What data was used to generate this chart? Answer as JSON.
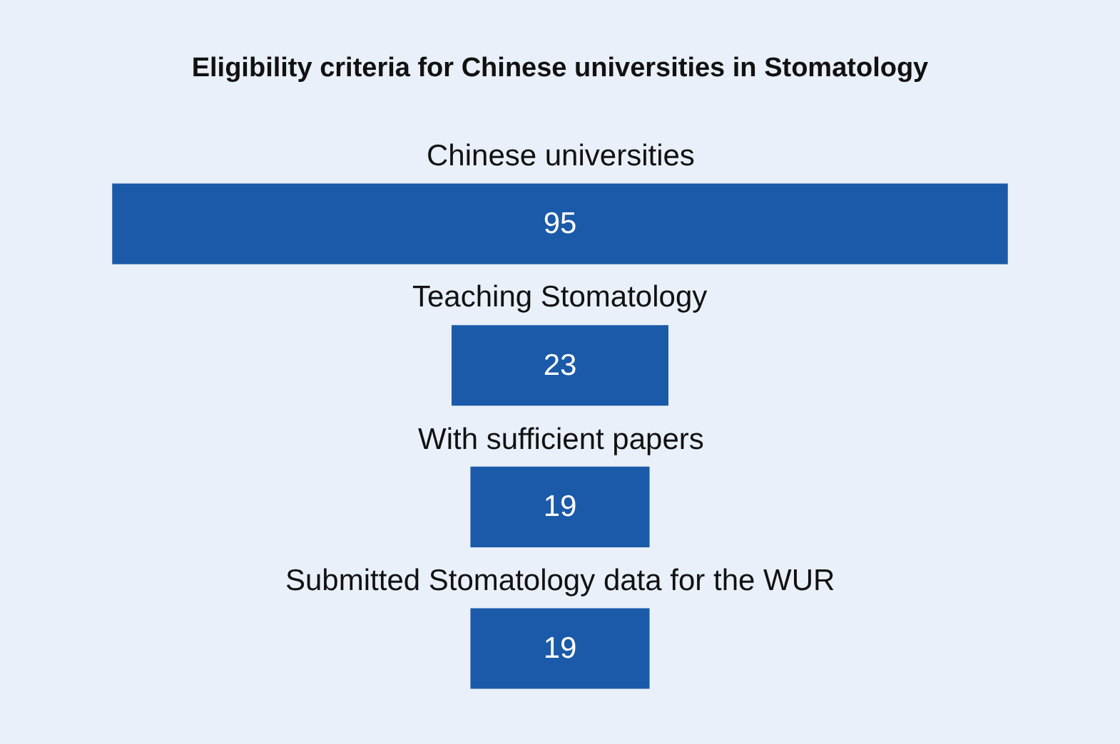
{
  "chart_data": {
    "type": "other",
    "title": "Eligibility criteria for Chinese universities in Stomatology",
    "categories": [
      "Chinese universities",
      "Teaching Stomatology",
      "With sufficient papers",
      "Submitted Stomatology data for the WUR"
    ],
    "values": [
      95,
      23,
      19,
      19
    ],
    "color": "#1a5aa8",
    "data_labels": true
  }
}
